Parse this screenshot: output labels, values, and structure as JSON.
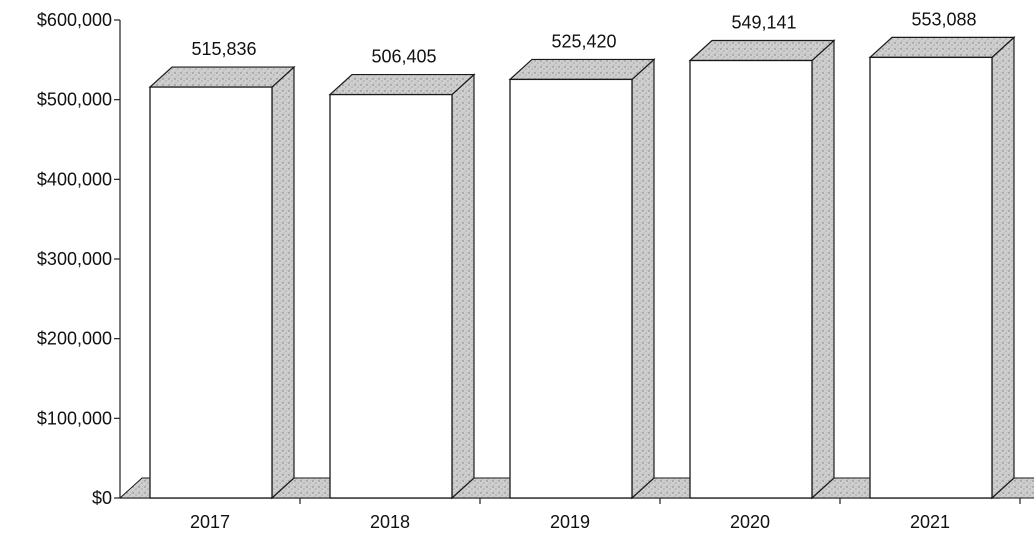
{
  "chart_data": {
    "type": "bar",
    "title": "",
    "xlabel": "",
    "ylabel": "",
    "categories": [
      "2017",
      "2018",
      "2019",
      "2020",
      "2021"
    ],
    "values": [
      515836,
      506405,
      525420,
      549141,
      553088
    ],
    "value_labels": [
      "515,836",
      "506,405",
      "525,420",
      "549,141",
      "553,088"
    ],
    "ylim": [
      0,
      600000
    ],
    "y_ticks": [
      {
        "value": 0,
        "label": "$0"
      },
      {
        "value": 100000,
        "label": "$100,000"
      },
      {
        "value": 200000,
        "label": "$200,000"
      },
      {
        "value": 300000,
        "label": "$300,000"
      },
      {
        "value": 400000,
        "label": "$400,000"
      },
      {
        "value": 500000,
        "label": "$500,000"
      },
      {
        "value": 600000,
        "label": "$600,000"
      }
    ],
    "grid": false,
    "legend": "none",
    "style": "3d-bar",
    "colors": {
      "front": "#ffffff",
      "shade": "#c4c4c4",
      "outline": "#1a1a1a"
    }
  }
}
